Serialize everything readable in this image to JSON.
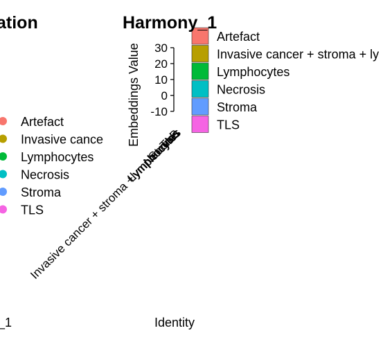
{
  "left_panel": {
    "title_fragment": "ation",
    "xlabel_fragment": "_1",
    "legend": [
      {
        "label": "Artefact",
        "color": "#F8766D"
      },
      {
        "label": "Invasive cance",
        "color": "#B79F00"
      },
      {
        "label": "Lymphocytes",
        "color": "#00BA38"
      },
      {
        "label": "Necrosis",
        "color": "#00BFC4"
      },
      {
        "label": "Stroma",
        "color": "#619CFF"
      },
      {
        "label": "TLS",
        "color": "#F564E3"
      }
    ]
  },
  "chart_data": {
    "type": "bar",
    "title": "Harmony_1",
    "xlabel": "Identity",
    "ylabel": "Embeddings Value",
    "ylim": [
      -14,
      33
    ],
    "yticks": [
      -10,
      0,
      10,
      20,
      30
    ],
    "categories": [
      "Invasive cancer + stroma + lymphocytes",
      "Lymphocytes",
      "Necrosis",
      "Stroma",
      "TLS"
    ],
    "category_labels": [
      "Invasive cancer + stroma +lymphocytes",
      "Lymphocytes",
      "Necrosis",
      "Stroma",
      "TLS"
    ],
    "values": [
      null,
      null,
      null,
      null,
      null
    ],
    "legend": {
      "position": "right",
      "items": [
        {
          "label": "Artefact",
          "color": "#F8766D"
        },
        {
          "label": "Invasive cancer + stroma + ly",
          "color": "#B79F00"
        },
        {
          "label": "Lymphocytes",
          "color": "#00BA38"
        },
        {
          "label": "Necrosis",
          "color": "#00BFC4"
        },
        {
          "label": "Stroma",
          "color": "#619CFF"
        },
        {
          "label": "TLS",
          "color": "#F564E3"
        }
      ]
    },
    "grid": false
  }
}
